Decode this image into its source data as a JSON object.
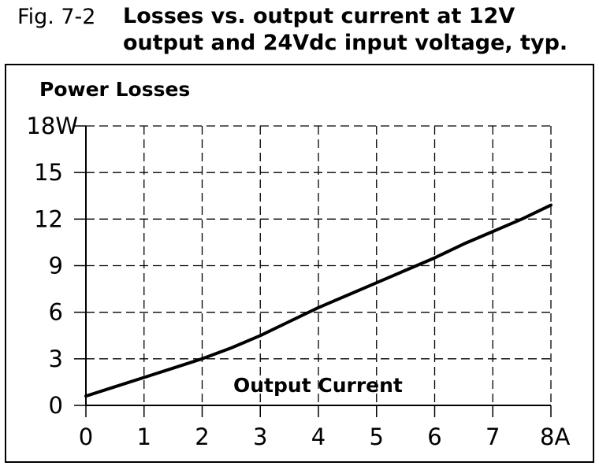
{
  "figure": {
    "label": "Fig. 7-2",
    "title_lines": [
      "Losses vs. output current at 12V",
      "output and 24Vdc input voltage, typ."
    ]
  },
  "chart_data": {
    "type": "line",
    "title": "Losses vs. output current at 12V output and 24Vdc input voltage, typ.",
    "xlabel": "Output Current",
    "ylabel": "Power Losses",
    "xlim": [
      0,
      8
    ],
    "ylim": [
      0,
      18
    ],
    "x_ticks": [
      "0",
      "1",
      "2",
      "3",
      "4",
      "5",
      "6",
      "7",
      "8A"
    ],
    "y_ticks": [
      "0",
      "3",
      "6",
      "9",
      "12",
      "15",
      "18W"
    ],
    "grid": true,
    "series": [
      {
        "x": [
          0,
          0.5,
          1,
          1.5,
          2,
          2.5,
          3,
          3.5,
          4,
          4.5,
          5,
          5.5,
          6,
          6.5,
          7,
          7.5,
          8
        ],
        "y": [
          0.6,
          1.2,
          1.8,
          2.4,
          3.0,
          3.7,
          4.5,
          5.4,
          6.3,
          7.1,
          7.9,
          8.7,
          9.5,
          10.4,
          11.2,
          12.0,
          12.9
        ]
      }
    ]
  }
}
